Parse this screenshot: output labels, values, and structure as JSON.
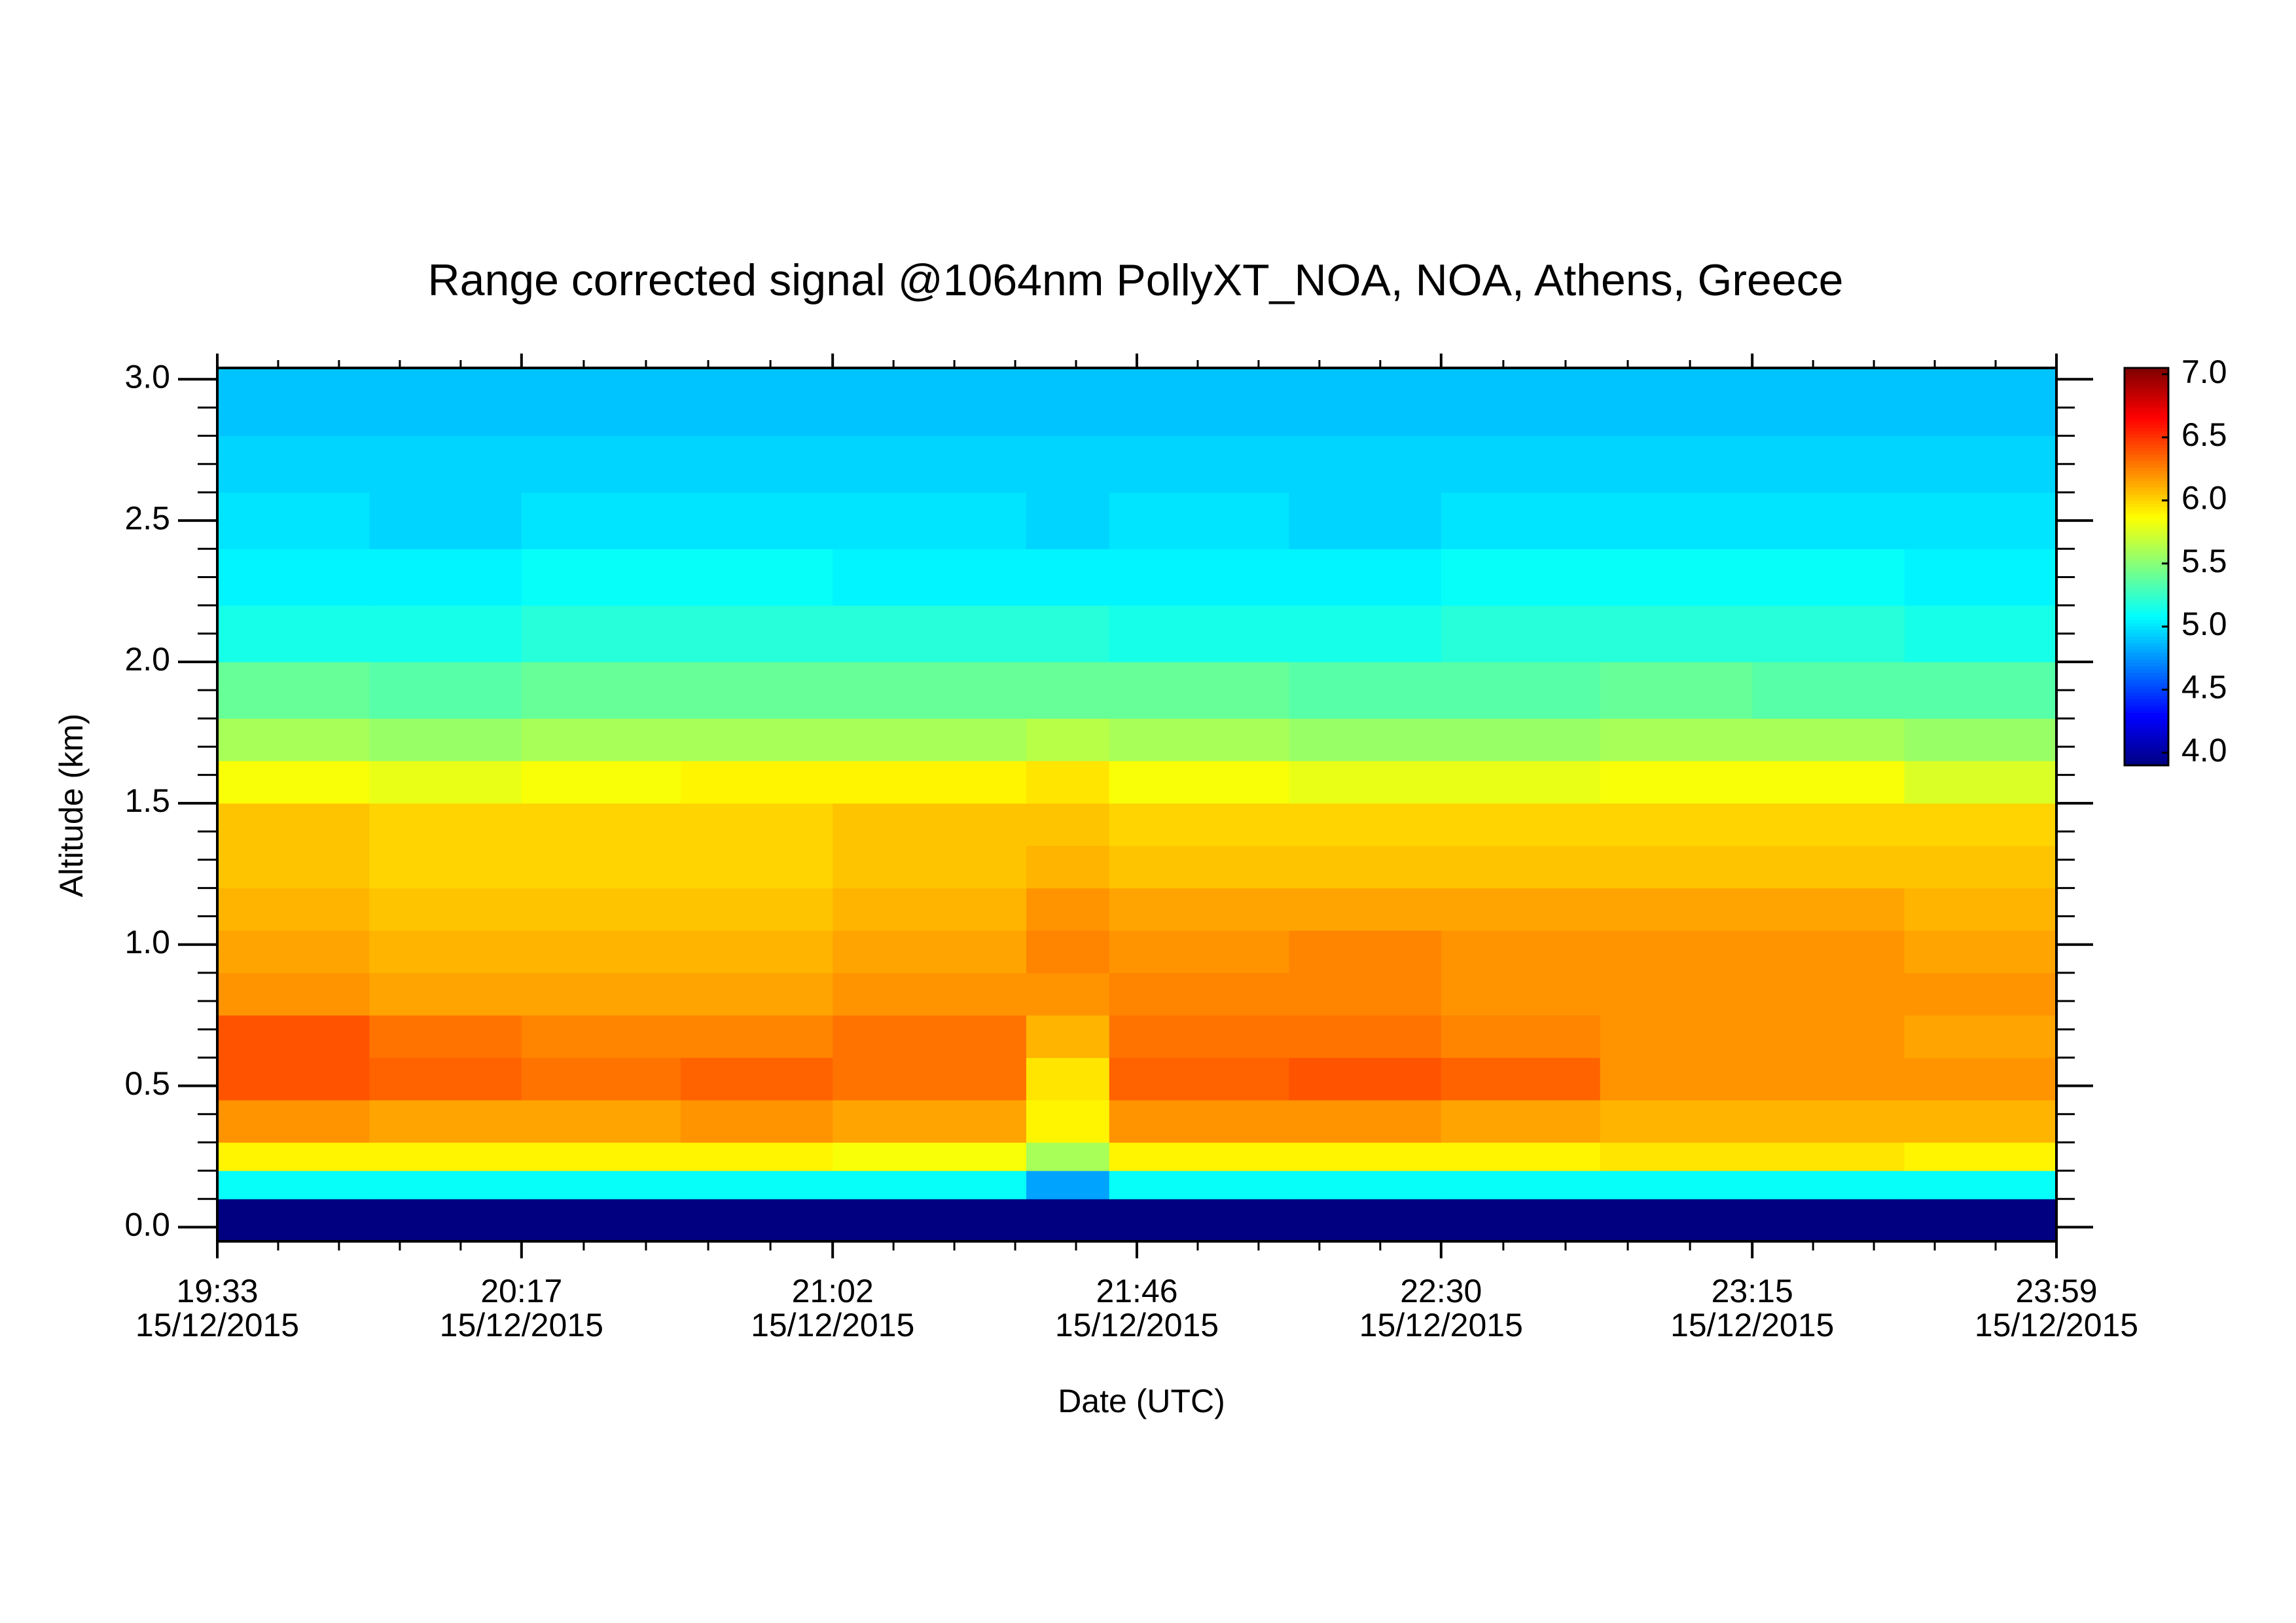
{
  "chart_data": {
    "type": "heatmap",
    "title": "Range corrected signal @1064nm  PollyXT_NOA, NOA, Athens, Greece",
    "x_label": "Date (UTC)",
    "y_label": "Altitude (km)",
    "x_edges": [
      "2015-12-15T19:33",
      "2015-12-15T19:55",
      "2015-12-15T20:17",
      "2015-12-15T20:40",
      "2015-12-15T21:02",
      "2015-12-15T21:30",
      "2015-12-15T21:42",
      "2015-12-15T22:08",
      "2015-12-15T22:30",
      "2015-12-15T22:53",
      "2015-12-15T23:15",
      "2015-12-15T23:37",
      "2015-12-15T23:59"
    ],
    "y_edges": [
      -0.05,
      0.1,
      0.2,
      0.3,
      0.45,
      0.6,
      0.75,
      0.9,
      1.05,
      1.2,
      1.35,
      1.5,
      1.65,
      1.8,
      2.0,
      2.2,
      2.4,
      2.6,
      2.8,
      3.04
    ],
    "z": [
      [
        3.9,
        3.9,
        3.9,
        3.9,
        3.9,
        3.9,
        3.9,
        3.9,
        3.9,
        3.9,
        3.9,
        3.9
      ],
      [
        5.1,
        5.1,
        5.1,
        5.1,
        5.1,
        4.8,
        5.1,
        5.1,
        5.1,
        5.1,
        5.1,
        5.1
      ],
      [
        5.9,
        5.9,
        5.9,
        5.9,
        5.85,
        5.6,
        5.9,
        5.9,
        5.9,
        5.95,
        5.95,
        5.9
      ],
      [
        6.2,
        6.15,
        6.15,
        6.2,
        6.15,
        5.9,
        6.2,
        6.2,
        6.15,
        6.1,
        6.1,
        6.1
      ],
      [
        6.4,
        6.35,
        6.3,
        6.35,
        6.3,
        5.95,
        6.35,
        6.4,
        6.35,
        6.2,
        6.2,
        6.2
      ],
      [
        6.4,
        6.3,
        6.25,
        6.25,
        6.3,
        6.1,
        6.3,
        6.3,
        6.25,
        6.2,
        6.2,
        6.15
      ],
      [
        6.2,
        6.15,
        6.15,
        6.15,
        6.2,
        6.2,
        6.25,
        6.25,
        6.2,
        6.2,
        6.2,
        6.2
      ],
      [
        6.15,
        6.1,
        6.1,
        6.1,
        6.15,
        6.25,
        6.2,
        6.25,
        6.2,
        6.2,
        6.2,
        6.15
      ],
      [
        6.1,
        6.05,
        6.05,
        6.05,
        6.1,
        6.2,
        6.15,
        6.15,
        6.15,
        6.15,
        6.15,
        6.1
      ],
      [
        6.05,
        6.0,
        6.0,
        6.0,
        6.05,
        6.1,
        6.05,
        6.05,
        6.05,
        6.05,
        6.05,
        6.05
      ],
      [
        6.05,
        6.0,
        6.0,
        6.0,
        6.05,
        6.05,
        6.0,
        6.0,
        6.0,
        6.0,
        6.0,
        6.0
      ],
      [
        5.85,
        5.8,
        5.85,
        5.9,
        5.9,
        5.95,
        5.85,
        5.8,
        5.8,
        5.85,
        5.85,
        5.75
      ],
      [
        5.6,
        5.55,
        5.6,
        5.6,
        5.6,
        5.65,
        5.6,
        5.55,
        5.55,
        5.6,
        5.6,
        5.55
      ],
      [
        5.4,
        5.35,
        5.4,
        5.4,
        5.4,
        5.4,
        5.4,
        5.35,
        5.35,
        5.4,
        5.35,
        5.35
      ],
      [
        5.15,
        5.15,
        5.2,
        5.2,
        5.2,
        5.2,
        5.15,
        5.15,
        5.2,
        5.2,
        5.2,
        5.15
      ],
      [
        5.05,
        5.05,
        5.1,
        5.1,
        5.05,
        5.05,
        5.05,
        5.05,
        5.1,
        5.1,
        5.1,
        5.05
      ],
      [
        5.0,
        4.95,
        5.0,
        5.0,
        5.0,
        4.95,
        5.0,
        4.95,
        5.0,
        5.0,
        5.0,
        5.0
      ],
      [
        4.95,
        4.95,
        4.95,
        4.95,
        4.95,
        4.95,
        4.95,
        4.95,
        4.95,
        4.95,
        4.95,
        4.95
      ],
      [
        4.9,
        4.9,
        4.9,
        4.9,
        4.9,
        4.9,
        4.9,
        4.9,
        4.9,
        4.9,
        4.9,
        4.9
      ]
    ],
    "colormap": "jet",
    "xlim": [
      "2015-12-15T19:33",
      "2015-12-15T23:59"
    ],
    "xticks": [
      {
        "value": "2015-12-15T19:33",
        "label": "19:33\n15/12/2015"
      },
      {
        "value": "2015-12-15T20:17",
        "label": "20:17\n15/12/2015"
      },
      {
        "value": "2015-12-15T21:02",
        "label": "21:02\n15/12/2015"
      },
      {
        "value": "2015-12-15T21:46",
        "label": "21:46\n15/12/2015"
      },
      {
        "value": "2015-12-15T22:30",
        "label": "22:30\n15/12/2015"
      },
      {
        "value": "2015-12-15T23:15",
        "label": "23:15\n15/12/2015"
      },
      {
        "value": "2015-12-15T23:59",
        "label": "23:59\n15/12/2015"
      }
    ],
    "ylim": [
      -0.05,
      3.04
    ],
    "yticks": [
      {
        "value": 0,
        "label": "0.0"
      },
      0.5,
      {
        "value": 1,
        "label": "1.0"
      },
      1.5,
      {
        "value": 2,
        "label": "2.0"
      },
      2.5,
      {
        "value": 3,
        "label": "3.0"
      }
    ],
    "zlim": [
      3.9,
      7.05
    ],
    "zticks": [
      {
        "value": 4,
        "label": "4.0"
      },
      4.5,
      {
        "value": 5,
        "label": "5.0"
      },
      5.5,
      {
        "value": 6,
        "label": "6.0"
      },
      6.5,
      {
        "value": 7,
        "label": "7.0"
      }
    ]
  }
}
